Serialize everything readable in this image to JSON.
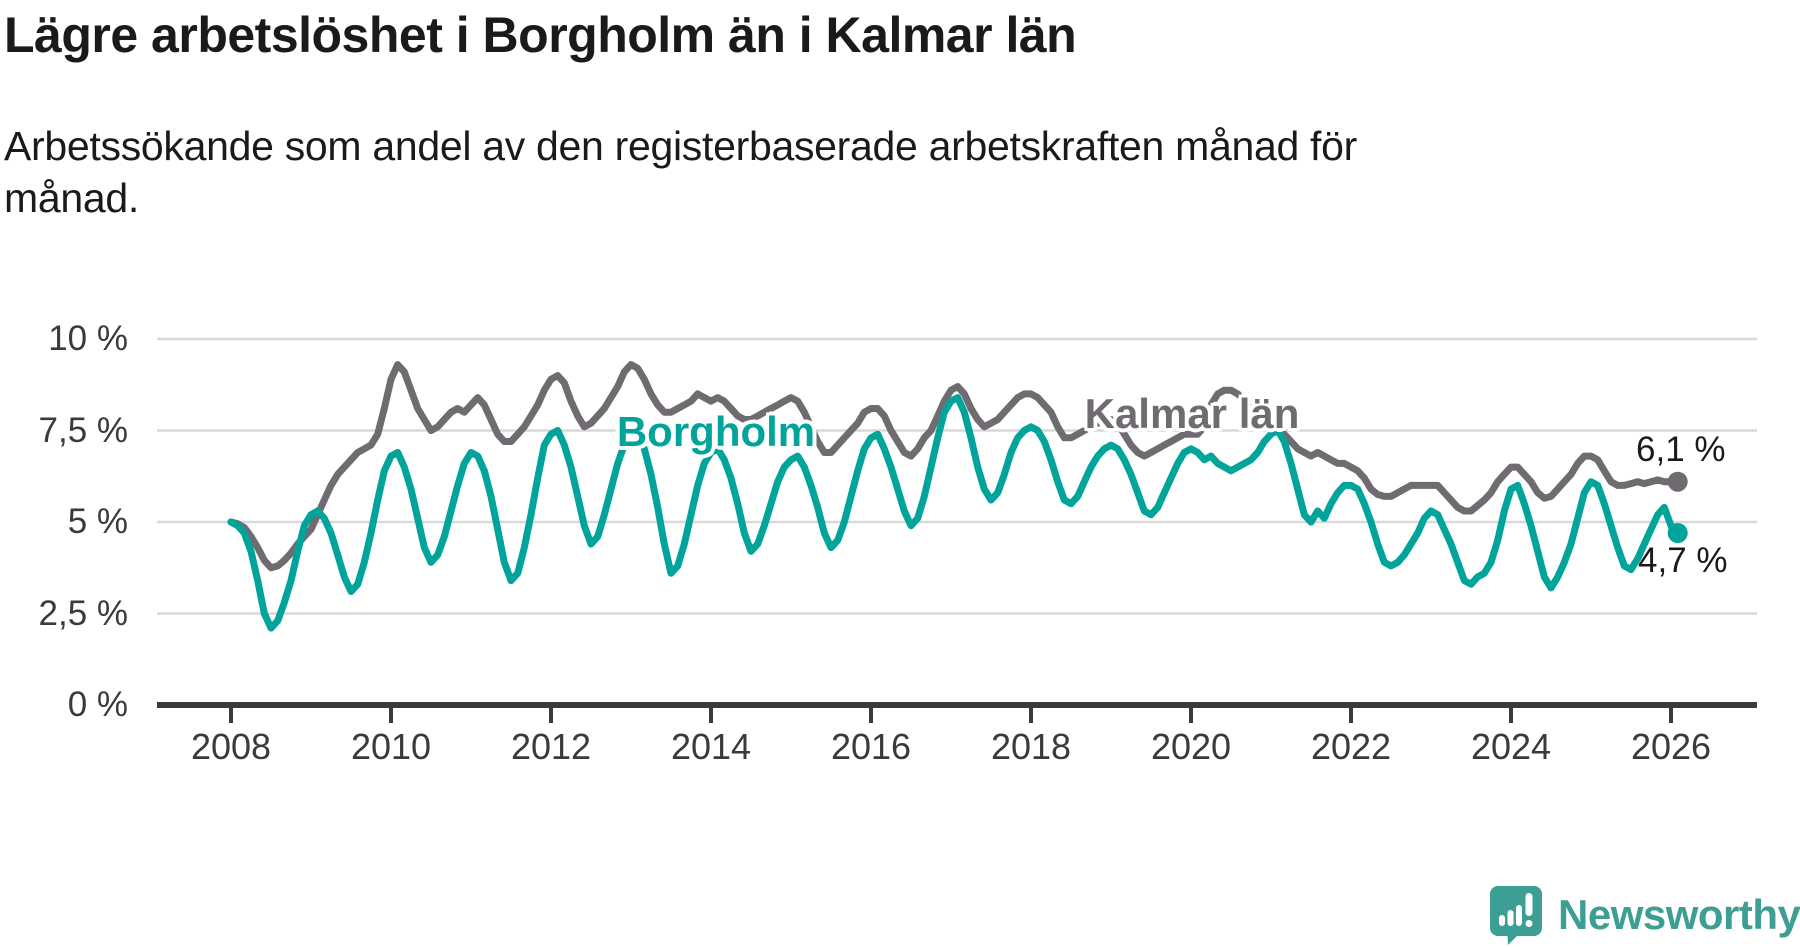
{
  "header": {
    "title": "Lägre arbetslöshet i Borgholm än i Kalmar län",
    "subtitle": "Arbetssökande som andel av den registerbaserade arbetskraften månad för månad."
  },
  "footer": {
    "brand": "Newsworthy",
    "brand_icon": "speech-bubble-bar-chart-exclamation",
    "brand_color": "#3d9e94"
  },
  "chart_data": {
    "type": "line",
    "title": "Lägre arbetslöshet i Borgholm än i Kalmar län",
    "subtitle": "Arbetssökande som andel av den registerbaserade arbetskraften månad för månad.",
    "frequency": "monthly",
    "start": "2008-01",
    "end": "2026-02",
    "ylim": [
      0,
      10
    ],
    "grid": "horizontal",
    "legend": "inline-labels",
    "colors": {
      "borgholm": "#00a49b",
      "kalmar": "#6f6b70",
      "gridline": "#d9d9d9",
      "axis": "#3a3a3a",
      "text": "#1a1a1a"
    },
    "y_ticks": [
      {
        "label": "0 %",
        "value": 0
      },
      {
        "label": "2,5 %",
        "value": 2.5
      },
      {
        "label": "5 %",
        "value": 5
      },
      {
        "label": "7,5 %",
        "value": 7.5
      },
      {
        "label": "10 %",
        "value": 10
      }
    ],
    "x_ticks": [
      {
        "label": "2008",
        "year": 2008
      },
      {
        "label": "2010",
        "year": 2010
      },
      {
        "label": "2012",
        "year": 2012
      },
      {
        "label": "2014",
        "year": 2014
      },
      {
        "label": "2016",
        "year": 2016
      },
      {
        "label": "2018",
        "year": 2018
      },
      {
        "label": "2020",
        "year": 2020
      },
      {
        "label": "2022",
        "year": 2022
      },
      {
        "label": "2024",
        "year": 2024
      },
      {
        "label": "2026",
        "year": 2026
      }
    ],
    "series": [
      {
        "name": "Kalmar län",
        "color": "#6f6b70",
        "end_label": "6,1 %",
        "end_value": 6.1,
        "values": [
          5.0,
          4.95,
          4.85,
          4.6,
          4.3,
          3.95,
          3.75,
          3.8,
          3.95,
          4.15,
          4.4,
          4.6,
          4.8,
          5.2,
          5.6,
          6.0,
          6.3,
          6.5,
          6.7,
          6.9,
          7.0,
          7.1,
          7.4,
          8.1,
          8.9,
          9.3,
          9.1,
          8.6,
          8.1,
          7.8,
          7.5,
          7.6,
          7.8,
          8.0,
          8.1,
          8.0,
          8.2,
          8.4,
          8.2,
          7.8,
          7.4,
          7.2,
          7.2,
          7.4,
          7.6,
          7.9,
          8.2,
          8.6,
          8.9,
          9.0,
          8.8,
          8.3,
          7.9,
          7.6,
          7.7,
          7.9,
          8.1,
          8.4,
          8.7,
          9.1,
          9.3,
          9.2,
          8.9,
          8.5,
          8.2,
          8.0,
          8.0,
          8.1,
          8.2,
          8.3,
          8.5,
          8.4,
          8.3,
          8.4,
          8.3,
          8.1,
          7.9,
          7.8,
          7.8,
          7.9,
          8.0,
          8.1,
          8.2,
          8.3,
          8.4,
          8.3,
          8.0,
          7.6,
          7.2,
          6.9,
          6.9,
          7.1,
          7.3,
          7.5,
          7.7,
          8.0,
          8.1,
          8.1,
          7.9,
          7.5,
          7.2,
          6.9,
          6.8,
          7.0,
          7.3,
          7.5,
          7.9,
          8.3,
          8.6,
          8.7,
          8.5,
          8.1,
          7.8,
          7.6,
          7.7,
          7.8,
          8.0,
          8.2,
          8.4,
          8.5,
          8.5,
          8.4,
          8.2,
          8.0,
          7.6,
          7.3,
          7.3,
          7.4,
          7.5,
          7.6,
          7.7,
          7.8,
          7.8,
          7.7,
          7.4,
          7.1,
          6.9,
          6.8,
          6.9,
          7.0,
          7.1,
          7.2,
          7.3,
          7.4,
          7.4,
          7.4,
          7.6,
          8.2,
          8.5,
          8.6,
          8.6,
          8.5,
          8.3,
          8.1,
          7.9,
          7.8,
          7.7,
          7.5,
          7.4,
          7.2,
          7.0,
          6.9,
          6.8,
          6.9,
          6.8,
          6.7,
          6.6,
          6.6,
          6.5,
          6.4,
          6.2,
          5.9,
          5.75,
          5.7,
          5.7,
          5.8,
          5.9,
          6.0,
          6.0,
          6.0,
          6.0,
          6.0,
          5.8,
          5.6,
          5.4,
          5.3,
          5.3,
          5.45,
          5.6,
          5.8,
          6.1,
          6.3,
          6.5,
          6.5,
          6.3,
          6.1,
          5.8,
          5.65,
          5.7,
          5.9,
          6.1,
          6.3,
          6.6,
          6.8,
          6.8,
          6.7,
          6.4,
          6.1,
          6.0,
          6.0,
          6.05,
          6.1,
          6.05,
          6.1,
          6.15,
          6.1,
          6.1,
          6.1
        ]
      },
      {
        "name": "Borgholm",
        "color": "#00a49b",
        "end_label": "4,7 %",
        "end_value": 4.7,
        "values": [
          5.0,
          4.9,
          4.7,
          4.2,
          3.4,
          2.5,
          2.1,
          2.3,
          2.8,
          3.4,
          4.2,
          4.9,
          5.2,
          5.3,
          5.1,
          4.7,
          4.1,
          3.5,
          3.1,
          3.3,
          3.9,
          4.7,
          5.6,
          6.4,
          6.8,
          6.9,
          6.5,
          5.9,
          5.1,
          4.3,
          3.9,
          4.1,
          4.6,
          5.3,
          6.0,
          6.6,
          6.9,
          6.8,
          6.4,
          5.7,
          4.8,
          3.9,
          3.4,
          3.6,
          4.3,
          5.2,
          6.2,
          7.1,
          7.4,
          7.5,
          7.1,
          6.5,
          5.7,
          4.9,
          4.4,
          4.6,
          5.2,
          5.9,
          6.6,
          7.1,
          7.3,
          7.4,
          7.0,
          6.3,
          5.4,
          4.4,
          3.6,
          3.8,
          4.4,
          5.2,
          6.0,
          6.6,
          6.9,
          7.0,
          6.7,
          6.2,
          5.5,
          4.7,
          4.2,
          4.4,
          4.9,
          5.5,
          6.1,
          6.5,
          6.7,
          6.8,
          6.5,
          6.0,
          5.4,
          4.7,
          4.3,
          4.5,
          5.0,
          5.7,
          6.4,
          7.0,
          7.3,
          7.4,
          7.0,
          6.5,
          5.9,
          5.3,
          4.9,
          5.1,
          5.7,
          6.5,
          7.3,
          8.0,
          8.3,
          8.4,
          8.0,
          7.3,
          6.5,
          5.9,
          5.6,
          5.8,
          6.3,
          6.9,
          7.3,
          7.5,
          7.6,
          7.5,
          7.2,
          6.7,
          6.1,
          5.6,
          5.5,
          5.7,
          6.1,
          6.5,
          6.8,
          7.0,
          7.1,
          7.0,
          6.7,
          6.3,
          5.8,
          5.3,
          5.2,
          5.4,
          5.8,
          6.2,
          6.6,
          6.9,
          7.0,
          6.9,
          6.7,
          6.8,
          6.6,
          6.5,
          6.4,
          6.5,
          6.6,
          6.7,
          6.9,
          7.2,
          7.4,
          7.5,
          7.2,
          6.6,
          5.9,
          5.2,
          5.0,
          5.3,
          5.1,
          5.5,
          5.8,
          6.0,
          6.0,
          5.9,
          5.5,
          5.0,
          4.4,
          3.9,
          3.8,
          3.9,
          4.1,
          4.4,
          4.7,
          5.1,
          5.3,
          5.2,
          4.8,
          4.4,
          3.9,
          3.4,
          3.3,
          3.5,
          3.6,
          3.9,
          4.5,
          5.3,
          5.9,
          6.0,
          5.5,
          4.9,
          4.2,
          3.5,
          3.2,
          3.5,
          3.9,
          4.4,
          5.1,
          5.8,
          6.1,
          6.0,
          5.5,
          4.9,
          4.3,
          3.8,
          3.7,
          4.0,
          4.4,
          4.8,
          5.2,
          5.4,
          4.9,
          4.7
        ]
      }
    ]
  }
}
